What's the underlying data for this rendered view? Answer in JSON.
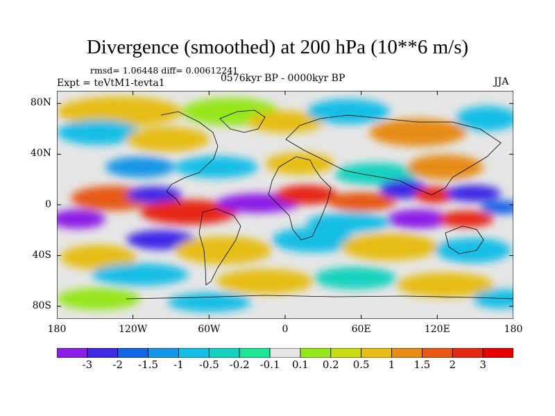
{
  "title": "Divergence (smoothed) at 200 hPa (10**6 m/s)",
  "stats": "rmsd= 1.06448 diff= 0.00612241",
  "expt": "Expt = teVtM1-tevta1",
  "period": "0576kyr BP - 0000kyr BP",
  "season": "JJA",
  "lat_labels": [
    "80N",
    "40N",
    "0",
    "40S",
    "80S"
  ],
  "lat_values": [
    80,
    40,
    0,
    -40,
    -80
  ],
  "lon_labels": [
    "180",
    "120W",
    "60W",
    "0",
    "60E",
    "120E",
    "180"
  ],
  "lon_values": [
    -180,
    -120,
    -60,
    0,
    60,
    120,
    180
  ],
  "colorbar": {
    "labels": [
      "-3",
      "-2",
      "-1.5",
      "-1",
      "-0.5",
      "-0.2",
      "-0.1",
      "0.1",
      "0.2",
      "0.5",
      "1",
      "1.5",
      "2",
      "3"
    ],
    "colors": [
      "#8c1ee6",
      "#3c28e6",
      "#1464e6",
      "#1496e6",
      "#14bee6",
      "#14d2be",
      "#1ee696",
      "#e6e6e6",
      "#96e61e",
      "#c8dc14",
      "#e6be14",
      "#e68c14",
      "#e65a14",
      "#e62814",
      "#e60000"
    ]
  }
}
